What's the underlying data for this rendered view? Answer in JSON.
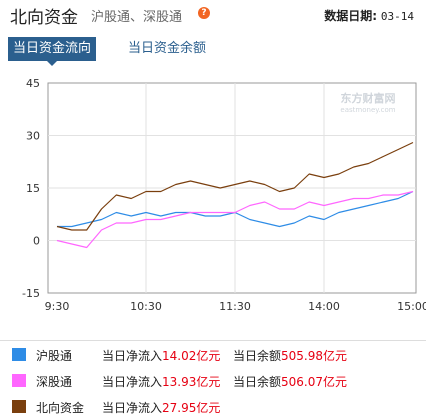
{
  "header": {
    "title": "北向资金",
    "subtitle": "沪股通、深股通",
    "help_icon": "question-icon",
    "date_label": "数据日期:",
    "date_value": "03-14"
  },
  "tabs": [
    {
      "label": "当日资金流向",
      "active": true
    },
    {
      "label": "当日资金余额",
      "active": false
    }
  ],
  "watermark": {
    "name": "东方财富网",
    "domain": "eastmoney.com"
  },
  "colors": {
    "sh": "#2e8ce6",
    "sz": "#ff66ff",
    "north": "#7a3f0e",
    "accent": "#2b5f8e",
    "value_red": "#e60012"
  },
  "chart_data": {
    "type": "line",
    "x_ticks": [
      "9:30",
      "10:30",
      "11:30",
      "14:00",
      "15:00"
    ],
    "y_ticks": [
      "45",
      "30",
      "15",
      "0",
      "-15"
    ],
    "ylim": [
      -15,
      45
    ],
    "grid": true,
    "x": [
      "9:30",
      "9:40",
      "9:50",
      "10:00",
      "10:10",
      "10:20",
      "10:30",
      "10:40",
      "10:50",
      "11:00",
      "11:10",
      "11:20",
      "11:30",
      "13:10",
      "13:20",
      "13:30",
      "13:40",
      "13:50",
      "14:00",
      "14:10",
      "14:20",
      "14:30",
      "14:40",
      "14:50",
      "15:00"
    ],
    "series": [
      {
        "name": "沪股通",
        "color": "#2e8ce6",
        "values": [
          4,
          4,
          5,
          6,
          8,
          7,
          8,
          7,
          8,
          8,
          7,
          7,
          8,
          6,
          5,
          4,
          5,
          7,
          6,
          8,
          9,
          10,
          11,
          12,
          14
        ]
      },
      {
        "name": "深股通",
        "color": "#ff66ff",
        "values": [
          0,
          -1,
          -2,
          3,
          5,
          5,
          6,
          6,
          7,
          8,
          8,
          8,
          8,
          10,
          11,
          9,
          9,
          11,
          10,
          11,
          12,
          12,
          13,
          13,
          14
        ]
      },
      {
        "name": "北向资金",
        "color": "#7a3f0e",
        "values": [
          4,
          3,
          3,
          9,
          13,
          12,
          14,
          14,
          16,
          17,
          16,
          15,
          16,
          17,
          16,
          14,
          15,
          19,
          18,
          19,
          21,
          22,
          24,
          26,
          28
        ]
      }
    ]
  },
  "legend": [
    {
      "name": "沪股通",
      "color": "#2e8ce6",
      "inflow_label": "当日净流入",
      "inflow_value": "14.02亿元",
      "balance_label": "当日余额",
      "balance_value": "505.98亿元"
    },
    {
      "name": "深股通",
      "color": "#ff66ff",
      "inflow_label": "当日净流入",
      "inflow_value": "13.93亿元",
      "balance_label": "当日余额",
      "balance_value": "506.07亿元"
    },
    {
      "name": "北向资金",
      "color": "#7a3f0e",
      "inflow_label": "当日净流入",
      "inflow_value": "27.95亿元",
      "balance_label": "",
      "balance_value": ""
    }
  ]
}
